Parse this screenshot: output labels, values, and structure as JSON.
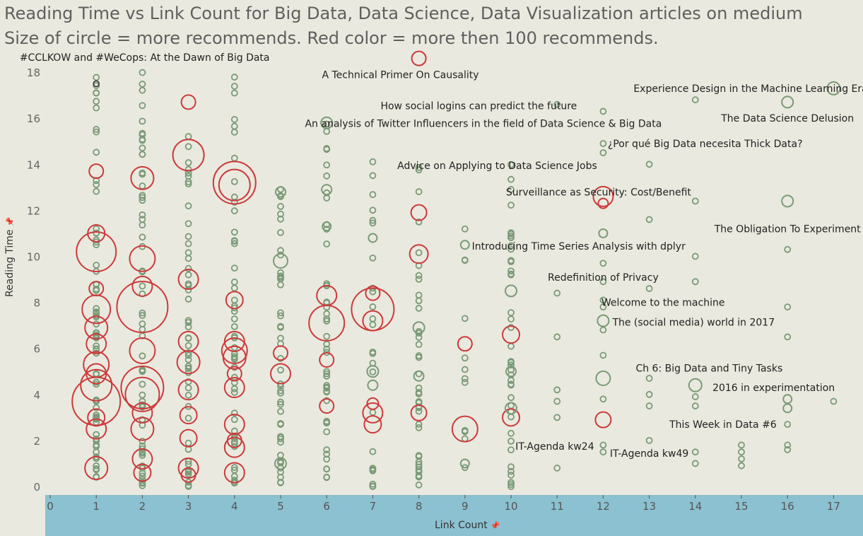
{
  "title_line1": "Reading Time vs Link Count for Big Data, Data Science, Data Visualization articles on medium",
  "title_line2": "Size of circle = more recommends. Red color = more then 100 recommends.",
  "colors": {
    "background": "#e9e9df",
    "axis_band": "#8bc1d1",
    "normal": "#7a9a77",
    "high": "#cc3a3a",
    "text": "#333333"
  },
  "chart_data": {
    "type": "scatter",
    "xlabel": "Link Count",
    "ylabel": "Reading Time",
    "xlim": [
      -0.2,
      17.6
    ],
    "ylim": [
      -0.3,
      18.9
    ],
    "x_ticks": [
      0,
      1,
      2,
      3,
      4,
      5,
      6,
      7,
      8,
      9,
      10,
      11,
      12,
      13,
      14,
      15,
      16,
      17
    ],
    "y_ticks": [
      0,
      2,
      4,
      6,
      8,
      10,
      12,
      14,
      16,
      18
    ],
    "legend": "none",
    "big_points": [
      {
        "x": 1,
        "y": 3.7,
        "r": 34,
        "red": true
      },
      {
        "x": 1,
        "y": 4.4,
        "r": 22,
        "red": true
      },
      {
        "x": 1,
        "y": 10.2,
        "r": 28,
        "red": true
      },
      {
        "x": 1,
        "y": 7.7,
        "r": 20,
        "red": true
      },
      {
        "x": 1,
        "y": 6.9,
        "r": 16,
        "red": true
      },
      {
        "x": 1,
        "y": 5.3,
        "r": 18,
        "red": true
      },
      {
        "x": 1,
        "y": 2.5,
        "r": 14,
        "red": true
      },
      {
        "x": 1,
        "y": 0.8,
        "r": 16,
        "red": true
      },
      {
        "x": 1,
        "y": 13.7,
        "r": 10,
        "red": true
      },
      {
        "x": 1,
        "y": 11.0,
        "r": 12,
        "red": true
      },
      {
        "x": 1,
        "y": 8.6,
        "r": 10,
        "red": true
      },
      {
        "x": 1,
        "y": 3.0,
        "r": 12,
        "red": true
      },
      {
        "x": 1,
        "y": 6.2,
        "r": 14,
        "red": true
      },
      {
        "x": 1,
        "y": 4.9,
        "r": 14,
        "red": true
      },
      {
        "x": 2,
        "y": 7.8,
        "r": 36,
        "red": true
      },
      {
        "x": 2,
        "y": 4.3,
        "r": 30,
        "red": true
      },
      {
        "x": 2,
        "y": 4.0,
        "r": 24,
        "red": true
      },
      {
        "x": 2,
        "y": 5.9,
        "r": 18,
        "red": true
      },
      {
        "x": 2,
        "y": 9.9,
        "r": 18,
        "red": true
      },
      {
        "x": 2,
        "y": 13.4,
        "r": 16,
        "red": true
      },
      {
        "x": 2,
        "y": 2.5,
        "r": 16,
        "red": true
      },
      {
        "x": 2,
        "y": 1.2,
        "r": 14,
        "red": true
      },
      {
        "x": 2,
        "y": 0.6,
        "r": 12,
        "red": true
      },
      {
        "x": 2,
        "y": 8.7,
        "r": 14,
        "red": true
      },
      {
        "x": 2,
        "y": 3.2,
        "r": 14,
        "red": true
      },
      {
        "x": 3,
        "y": 14.4,
        "r": 22,
        "red": true
      },
      {
        "x": 3,
        "y": 16.7,
        "r": 10,
        "red": true
      },
      {
        "x": 3,
        "y": 9.0,
        "r": 14,
        "red": true
      },
      {
        "x": 3,
        "y": 5.4,
        "r": 16,
        "red": true
      },
      {
        "x": 3,
        "y": 6.3,
        "r": 14,
        "red": true
      },
      {
        "x": 3,
        "y": 4.2,
        "r": 14,
        "red": true
      },
      {
        "x": 3,
        "y": 0.8,
        "r": 14,
        "red": true
      },
      {
        "x": 3,
        "y": 0.5,
        "r": 10,
        "red": true
      },
      {
        "x": 3,
        "y": 3.1,
        "r": 12,
        "red": true
      },
      {
        "x": 3,
        "y": 2.1,
        "r": 12,
        "red": true
      },
      {
        "x": 4,
        "y": 13.2,
        "r": 30,
        "red": true
      },
      {
        "x": 4,
        "y": 13.1,
        "r": 22,
        "red": true
      },
      {
        "x": 4,
        "y": 5.9,
        "r": 18,
        "red": true
      },
      {
        "x": 4,
        "y": 5.6,
        "r": 16,
        "red": true
      },
      {
        "x": 4,
        "y": 6.3,
        "r": 14,
        "red": true
      },
      {
        "x": 4,
        "y": 8.1,
        "r": 12,
        "red": true
      },
      {
        "x": 4,
        "y": 4.3,
        "r": 14,
        "red": true
      },
      {
        "x": 4,
        "y": 2.7,
        "r": 14,
        "red": true
      },
      {
        "x": 4,
        "y": 1.7,
        "r": 14,
        "red": true
      },
      {
        "x": 4,
        "y": 0.6,
        "r": 14,
        "red": true
      },
      {
        "x": 4,
        "y": 4.9,
        "r": 10,
        "red": true
      },
      {
        "x": 4,
        "y": 2.0,
        "r": 10,
        "red": true
      },
      {
        "x": 5,
        "y": 4.9,
        "r": 14,
        "red": true
      },
      {
        "x": 5,
        "y": 5.8,
        "r": 10,
        "red": true
      },
      {
        "x": 5,
        "y": 9.8,
        "r": 10,
        "red": false
      },
      {
        "x": 5,
        "y": 12.8,
        "r": 7,
        "red": false
      },
      {
        "x": 5,
        "y": 1.0,
        "r": 8,
        "red": false
      },
      {
        "x": 6,
        "y": 7.1,
        "r": 25,
        "red": true
      },
      {
        "x": 6,
        "y": 8.3,
        "r": 14,
        "red": true
      },
      {
        "x": 6,
        "y": 5.5,
        "r": 10,
        "red": true
      },
      {
        "x": 6,
        "y": 3.5,
        "r": 10,
        "red": true
      },
      {
        "x": 6,
        "y": 15.8,
        "r": 8,
        "red": false
      },
      {
        "x": 6,
        "y": 12.9,
        "r": 7,
        "red": false
      },
      {
        "x": 6,
        "y": 11.3,
        "r": 6,
        "red": false
      },
      {
        "x": 7,
        "y": 7.7,
        "r": 30,
        "red": true
      },
      {
        "x": 7,
        "y": 7.2,
        "r": 14,
        "red": true
      },
      {
        "x": 7,
        "y": 8.4,
        "r": 10,
        "red": true
      },
      {
        "x": 7,
        "y": 3.2,
        "r": 14,
        "red": true
      },
      {
        "x": 7,
        "y": 2.7,
        "r": 12,
        "red": true
      },
      {
        "x": 7,
        "y": 3.6,
        "r": 8,
        "red": true
      },
      {
        "x": 7,
        "y": 5.0,
        "r": 8,
        "red": false
      },
      {
        "x": 7,
        "y": 4.4,
        "r": 7,
        "red": false
      },
      {
        "x": 7,
        "y": 10.8,
        "r": 6,
        "red": false
      },
      {
        "x": 8,
        "y": 18.6,
        "r": 10,
        "red": true
      },
      {
        "x": 8,
        "y": 11.9,
        "r": 11,
        "red": true
      },
      {
        "x": 8,
        "y": 10.1,
        "r": 13,
        "red": true
      },
      {
        "x": 8,
        "y": 3.2,
        "r": 11,
        "red": true
      },
      {
        "x": 8,
        "y": 6.9,
        "r": 8,
        "red": false
      },
      {
        "x": 8,
        "y": 4.8,
        "r": 7,
        "red": false
      },
      {
        "x": 9,
        "y": 2.5,
        "r": 18,
        "red": true
      },
      {
        "x": 9,
        "y": 6.2,
        "r": 10,
        "red": true
      },
      {
        "x": 9,
        "y": 10.5,
        "r": 6,
        "red": false
      },
      {
        "x": 9,
        "y": 1.0,
        "r": 6,
        "red": false
      },
      {
        "x": 10,
        "y": 6.6,
        "r": 12,
        "red": true
      },
      {
        "x": 10,
        "y": 3.0,
        "r": 12,
        "red": true
      },
      {
        "x": 10,
        "y": 8.5,
        "r": 8,
        "red": false
      },
      {
        "x": 10,
        "y": 3.4,
        "r": 8,
        "red": false
      },
      {
        "x": 10,
        "y": 5.0,
        "r": 7,
        "red": false
      },
      {
        "x": 12,
        "y": 12.6,
        "r": 14,
        "red": true
      },
      {
        "x": 12,
        "y": 12.3,
        "r": 7,
        "red": true
      },
      {
        "x": 12,
        "y": 2.9,
        "r": 11,
        "red": true
      },
      {
        "x": 12,
        "y": 7.2,
        "r": 8,
        "red": false
      },
      {
        "x": 12,
        "y": 4.7,
        "r": 10,
        "red": false
      },
      {
        "x": 12,
        "y": 11.0,
        "r": 6,
        "red": false
      },
      {
        "x": 14,
        "y": 4.4,
        "r": 9,
        "red": false
      },
      {
        "x": 16,
        "y": 16.7,
        "r": 8,
        "red": false
      },
      {
        "x": 16,
        "y": 12.4,
        "r": 8,
        "red": false
      },
      {
        "x": 16,
        "y": 3.8,
        "r": 6,
        "red": false
      },
      {
        "x": 16,
        "y": 3.4,
        "r": 6,
        "red": false
      },
      {
        "x": 17,
        "y": 17.3,
        "r": 9,
        "red": false
      }
    ],
    "small_points": [
      {
        "x": 11,
        "y": 16.6
      },
      {
        "x": 11,
        "y": 8.4
      },
      {
        "x": 11,
        "y": 6.5
      },
      {
        "x": 11,
        "y": 4.2
      },
      {
        "x": 11,
        "y": 3.7
      },
      {
        "x": 11,
        "y": 3.0
      },
      {
        "x": 11,
        "y": 0.8
      },
      {
        "x": 12,
        "y": 16.3
      },
      {
        "x": 12,
        "y": 14.9
      },
      {
        "x": 12,
        "y": 14.5
      },
      {
        "x": 12,
        "y": 9.7
      },
      {
        "x": 12,
        "y": 8.9
      },
      {
        "x": 12,
        "y": 8.1
      },
      {
        "x": 12,
        "y": 7.8
      },
      {
        "x": 12,
        "y": 6.8
      },
      {
        "x": 12,
        "y": 5.7
      },
      {
        "x": 12,
        "y": 3.8
      },
      {
        "x": 12,
        "y": 1.8
      },
      {
        "x": 12,
        "y": 1.5
      },
      {
        "x": 13,
        "y": 14.0
      },
      {
        "x": 13,
        "y": 11.6
      },
      {
        "x": 13,
        "y": 8.6
      },
      {
        "x": 13,
        "y": 4.7
      },
      {
        "x": 13,
        "y": 4.0
      },
      {
        "x": 13,
        "y": 3.5
      },
      {
        "x": 13,
        "y": 2.0
      },
      {
        "x": 14,
        "y": 16.8
      },
      {
        "x": 14,
        "y": 12.4
      },
      {
        "x": 14,
        "y": 10.0
      },
      {
        "x": 14,
        "y": 8.9
      },
      {
        "x": 14,
        "y": 3.9
      },
      {
        "x": 14,
        "y": 3.5
      },
      {
        "x": 14,
        "y": 1.5
      },
      {
        "x": 14,
        "y": 1.0
      },
      {
        "x": 15,
        "y": 1.8
      },
      {
        "x": 15,
        "y": 1.5
      },
      {
        "x": 15,
        "y": 1.2
      },
      {
        "x": 15,
        "y": 0.9
      },
      {
        "x": 16,
        "y": 10.3
      },
      {
        "x": 16,
        "y": 7.8
      },
      {
        "x": 16,
        "y": 6.5
      },
      {
        "x": 16,
        "y": 2.7
      },
      {
        "x": 16,
        "y": 1.8
      },
      {
        "x": 16,
        "y": 1.6
      },
      {
        "x": 17,
        "y": 3.7
      }
    ],
    "annotations": [
      {
        "text": "#CCLKOW and #WeCops: At the Dawn of Big Data",
        "x": 2.05,
        "y": 18.65,
        "anchor": "middle"
      },
      {
        "text": "A Technical Primer On Causality",
        "x": 7.6,
        "y": 17.9,
        "anchor": "middle"
      },
      {
        "text": "Experience Design in the Machine Learning Era",
        "x": 15.2,
        "y": 17.3,
        "anchor": "middle"
      },
      {
        "text": "How social logins can predict the future",
        "x": 9.3,
        "y": 16.55,
        "anchor": "middle"
      },
      {
        "text": "The Data Science Delusion",
        "x": 16.0,
        "y": 16.0,
        "anchor": "middle"
      },
      {
        "text": "An analysis of Twitter Influencers in the field of Data Science & Big Data",
        "x": 9.4,
        "y": 15.78,
        "anchor": "middle"
      },
      {
        "text": "¿Por qué Big Data necesita Thick Data?",
        "x": 12.1,
        "y": 14.9,
        "anchor": "start"
      },
      {
        "text": "Advice on Applying to Data Science Jobs",
        "x": 9.7,
        "y": 13.95,
        "anchor": "middle"
      },
      {
        "text": "Surveillance as Security: Cost/Benefit",
        "x": 11.9,
        "y": 12.8,
        "anchor": "middle"
      },
      {
        "text": "The Obligation To Experiment",
        "x": 16.0,
        "y": 11.2,
        "anchor": "middle"
      },
      {
        "text": "Introducing Time Series Analysis with dplyr",
        "x": 9.15,
        "y": 10.45,
        "anchor": "start"
      },
      {
        "text": "Redefinition of Privacy",
        "x": 12.0,
        "y": 9.1,
        "anchor": "middle"
      },
      {
        "text": "Welcome to the machine",
        "x": 13.3,
        "y": 8.0,
        "anchor": "middle"
      },
      {
        "text": "The (social media) world in 2017",
        "x": 12.2,
        "y": 7.15,
        "anchor": "start"
      },
      {
        "text": "Ch 6: Big Data and Tiny Tasks",
        "x": 14.3,
        "y": 5.15,
        "anchor": "middle"
      },
      {
        "text": "2016 in experimentation",
        "x": 15.7,
        "y": 4.3,
        "anchor": "middle"
      },
      {
        "text": "This Week in Data #6",
        "x": 14.6,
        "y": 2.7,
        "anchor": "middle"
      },
      {
        "text": "IT-Agenda kw24",
        "x": 10.95,
        "y": 1.75,
        "anchor": "middle"
      },
      {
        "text": "IT-Agenda kw49",
        "x": 13.0,
        "y": 1.45,
        "anchor": "middle"
      }
    ]
  }
}
